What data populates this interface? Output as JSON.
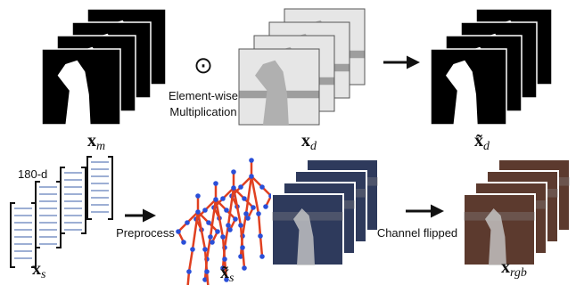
{
  "operator": "⊙",
  "operation": [
    "Element-wise",
    "Multiplication"
  ],
  "dimension": "180-d",
  "steps": [
    "Preprocess",
    "Channel flipped"
  ],
  "labels": {
    "mask": {
      "base": "x",
      "sub": "m"
    },
    "depth": {
      "base": "x",
      "sub": "d"
    },
    "depth_masked": {
      "base": "x̃",
      "sub": "d"
    },
    "skeleton": {
      "base": "x",
      "sub": "s"
    },
    "skeleton_processed": {
      "base": "x̃",
      "sub": "s"
    },
    "rgb": {
      "base": "x",
      "sub": "rgb"
    }
  }
}
